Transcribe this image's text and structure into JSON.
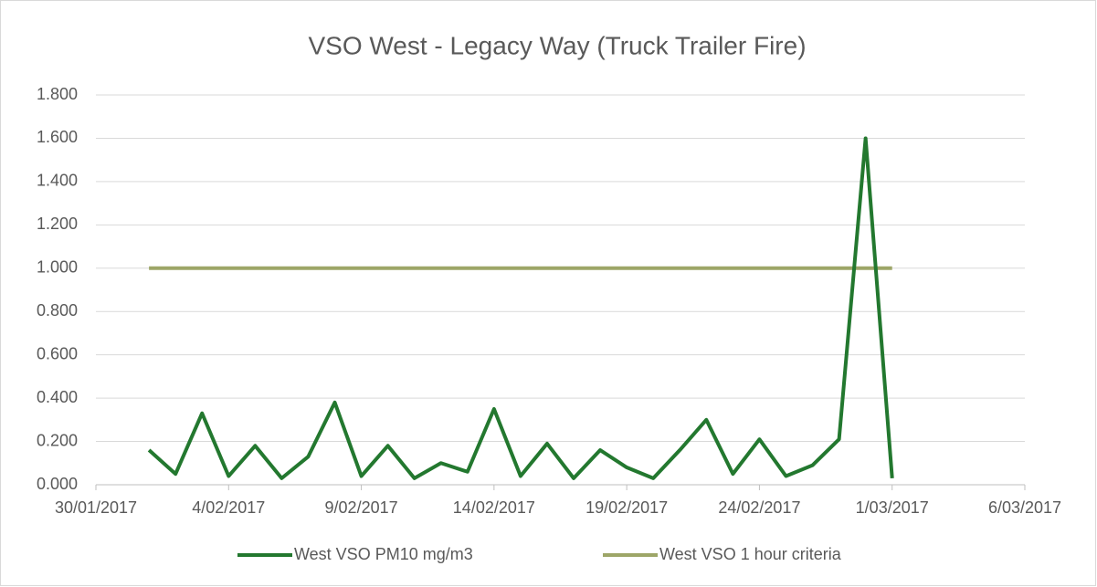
{
  "chart_data": {
    "type": "line",
    "title": "VSO West - Legacy Way (Truck Trailer Fire)",
    "series": [
      {
        "name": "West VSO PM10 mg/m3",
        "color": "#23782f",
        "x": [
          "2017-02-01",
          "2017-02-02",
          "2017-02-03",
          "2017-02-04",
          "2017-02-05",
          "2017-02-06",
          "2017-02-07",
          "2017-02-08",
          "2017-02-09",
          "2017-02-10",
          "2017-02-11",
          "2017-02-12",
          "2017-02-13",
          "2017-02-14",
          "2017-02-15",
          "2017-02-16",
          "2017-02-17",
          "2017-02-18",
          "2017-02-19",
          "2017-02-20",
          "2017-02-21",
          "2017-02-22",
          "2017-02-23",
          "2017-02-24",
          "2017-02-25",
          "2017-02-26",
          "2017-02-27",
          "2017-02-28",
          "2017-03-01"
        ],
        "values": [
          0.16,
          0.05,
          0.33,
          0.04,
          0.18,
          0.03,
          0.13,
          0.38,
          0.04,
          0.18,
          0.03,
          0.1,
          0.06,
          0.35,
          0.04,
          0.19,
          0.03,
          0.16,
          0.08,
          0.03,
          0.16,
          0.3,
          0.05,
          0.21,
          0.04,
          0.09,
          0.21,
          1.6,
          0.03
        ]
      },
      {
        "name": "West VSO 1 hour criteria",
        "color": "#9da668",
        "x": [
          "2017-02-01",
          "2017-03-01"
        ],
        "values": [
          1,
          1
        ]
      }
    ],
    "xlim": [
      "2017-01-30",
      "2017-03-06"
    ],
    "xticks": [
      {
        "value": "2017-01-30",
        "label": "30/01/2017"
      },
      {
        "value": "2017-02-04",
        "label": "4/02/2017"
      },
      {
        "value": "2017-02-09",
        "label": "9/02/2017"
      },
      {
        "value": "2017-02-14",
        "label": "14/02/2017"
      },
      {
        "value": "2017-02-19",
        "label": "19/02/2017"
      },
      {
        "value": "2017-02-24",
        "label": "24/02/2017"
      },
      {
        "value": "2017-03-01",
        "label": "1/03/2017"
      },
      {
        "value": "2017-03-06",
        "label": "6/03/2017"
      }
    ],
    "ylim": [
      0,
      1.8
    ],
    "yticks": [
      {
        "value": 0,
        "label": "0.000"
      },
      {
        "value": 0.2,
        "label": "0.200"
      },
      {
        "value": 0.4,
        "label": "0.400"
      },
      {
        "value": 0.6,
        "label": "0.600"
      },
      {
        "value": 0.8,
        "label": "0.800"
      },
      {
        "value": 1,
        "label": "1.000"
      },
      {
        "value": 1.2,
        "label": "1.200"
      },
      {
        "value": 1.4,
        "label": "1.400"
      },
      {
        "value": 1.6,
        "label": "1.600"
      },
      {
        "value": 1.8,
        "label": "1.800"
      }
    ],
    "grid": true,
    "legend": "bottom"
  }
}
